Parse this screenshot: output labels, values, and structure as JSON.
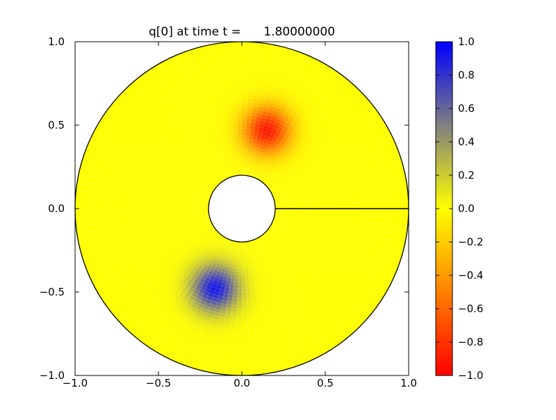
{
  "chart_data": [
    {
      "type": "heatmap",
      "title": "q[0] at time t =      1.80000000",
      "xlabel": "",
      "ylabel": "",
      "xlim": [
        -1.0,
        1.0
      ],
      "ylim": [
        -1.0,
        1.0
      ],
      "x_tick_labels": [
        "−1.0",
        "−0.5",
        "0.0",
        "0.5",
        "1.0"
      ],
      "y_tick_labels": [
        "−1.0",
        "−0.5",
        "0.0",
        "0.5",
        "1.0"
      ],
      "x_ticks": [
        -1.0,
        -0.5,
        0.0,
        0.5,
        1.0
      ],
      "y_ticks": [
        -1.0,
        -0.5,
        0.0,
        0.5,
        1.0
      ],
      "domain": {
        "shape": "annulus",
        "inner_radius": 0.2,
        "outer_radius": 1.0,
        "cut_line": {
          "from": [
            0.2,
            0.0
          ],
          "to": [
            1.0,
            0.0
          ]
        }
      },
      "field_features": [
        {
          "name": "negative blob",
          "center": [
            0.15,
            0.47
          ],
          "peak_value": -0.9
        },
        {
          "name": "positive blob",
          "center": [
            -0.16,
            -0.48
          ],
          "peak_value": 0.9
        }
      ],
      "background_value": 0.0,
      "grid": false
    },
    {
      "type": "colorbar",
      "range": [
        -1.0,
        1.0
      ],
      "tick_values": [
        1.0,
        0.8,
        0.6,
        0.4,
        0.2,
        0.0,
        -0.2,
        -0.4,
        -0.6,
        -0.8,
        -1.0
      ],
      "tick_labels": [
        "1.0",
        "0.8",
        "0.6",
        "0.4",
        "0.2",
        "0.0",
        "−0.2",
        "−0.4",
        "−0.6",
        "−0.8",
        "−1.0"
      ],
      "colormap": [
        {
          "value": -1.0,
          "color": "#ff0000"
        },
        {
          "value": -0.5,
          "color": "#ff8000"
        },
        {
          "value": 0.0,
          "color": "#ffff00"
        },
        {
          "value": 0.5,
          "color": "#808080"
        },
        {
          "value": 1.0,
          "color": "#0000ff"
        }
      ]
    }
  ]
}
